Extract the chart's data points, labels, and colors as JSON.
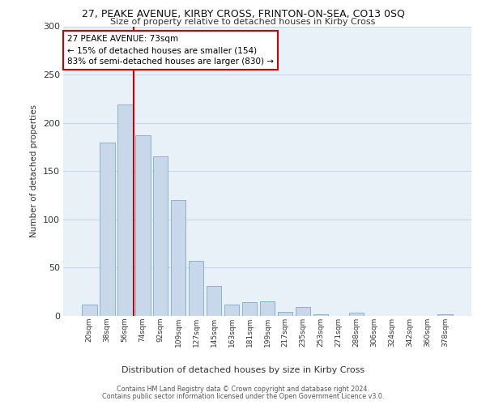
{
  "title": "27, PEAKE AVENUE, KIRBY CROSS, FRINTON-ON-SEA, CO13 0SQ",
  "subtitle": "Size of property relative to detached houses in Kirby Cross",
  "xlabel": "Distribution of detached houses by size in Kirby Cross",
  "ylabel": "Number of detached properties",
  "categories": [
    "20sqm",
    "38sqm",
    "56sqm",
    "74sqm",
    "92sqm",
    "109sqm",
    "127sqm",
    "145sqm",
    "163sqm",
    "181sqm",
    "199sqm",
    "217sqm",
    "235sqm",
    "253sqm",
    "271sqm",
    "288sqm",
    "306sqm",
    "324sqm",
    "342sqm",
    "360sqm",
    "378sqm"
  ],
  "values": [
    12,
    180,
    219,
    187,
    165,
    120,
    57,
    31,
    12,
    14,
    15,
    4,
    9,
    2,
    0,
    3,
    0,
    0,
    0,
    0,
    2
  ],
  "bar_color": "#c8d8ea",
  "bar_edge_color": "#8ab4cc",
  "vline_color": "#cc0000",
  "vline_x": 2.5,
  "annotation_text": "27 PEAKE AVENUE: 73sqm\n← 15% of detached houses are smaller (154)\n83% of semi-detached houses are larger (830) →",
  "annotation_box_color": "#ffffff",
  "annotation_box_edge_color": "#cc0000",
  "ylim": [
    0,
    300
  ],
  "yticks": [
    0,
    50,
    100,
    150,
    200,
    250,
    300
  ],
  "grid_color": "#c8d8e8",
  "background_color": "#e8f0f8",
  "footer1": "Contains HM Land Registry data © Crown copyright and database right 2024.",
  "footer2": "Contains public sector information licensed under the Open Government Licence v3.0."
}
